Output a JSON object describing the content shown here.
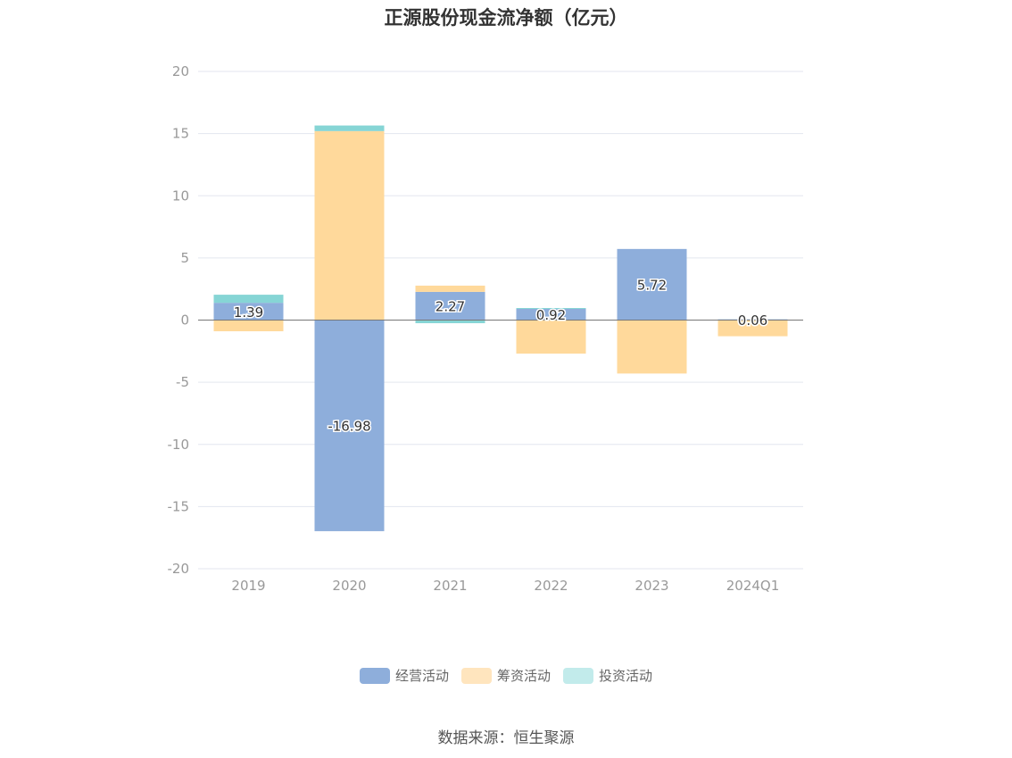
{
  "chart_data": {
    "type": "bar",
    "title": "正源股份现金流净额（亿元）",
    "categories": [
      "2019",
      "2020",
      "2021",
      "2022",
      "2023",
      "2024Q1"
    ],
    "ylim": [
      -20,
      20
    ],
    "yticks": [
      20,
      15,
      10,
      5,
      0,
      -5,
      -10,
      -15,
      -20
    ],
    "grid": true,
    "legend_position": "bottom",
    "stacked": true,
    "series": [
      {
        "name": "经营活动",
        "color": "#8eaedb",
        "values": [
          1.39,
          -16.98,
          2.27,
          0.92,
          5.72,
          0.06
        ]
      },
      {
        "name": "筹资活动",
        "color": "#ffd99b",
        "values": [
          -0.9,
          15.2,
          0.5,
          -2.7,
          -4.3,
          -1.3
        ]
      },
      {
        "name": "投资活动",
        "color": "#86d5d5",
        "values": [
          0.65,
          0.45,
          -0.25,
          0.05,
          0.0,
          0.0
        ]
      }
    ],
    "data_labels": [
      "1.39",
      "-16.98",
      "2.27",
      "0.92",
      "5.72",
      "0.06"
    ]
  },
  "legend": [
    {
      "label": "经营活动",
      "color": "#8eaedb"
    },
    {
      "label": "筹资活动",
      "color": "#ffe5be"
    },
    {
      "label": "投资活动",
      "color": "#c2ebeb"
    }
  ],
  "source": "数据来源：恒生聚源"
}
